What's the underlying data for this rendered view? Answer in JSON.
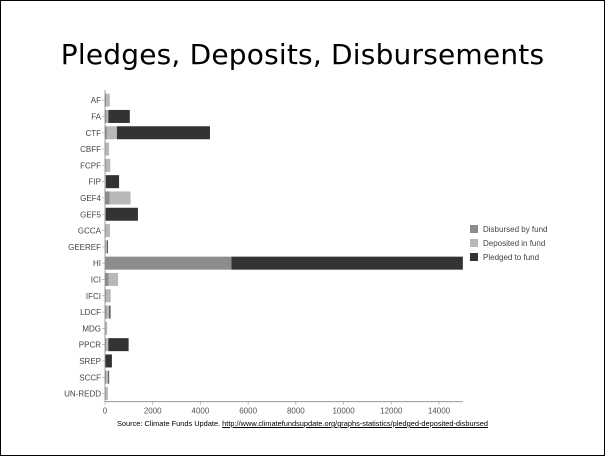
{
  "slide": {
    "title": "Pledges, Deposits, Disbursements",
    "source_prefix": "Source: Climate Funds Update. ",
    "source_link": "http://www.climatefundsupdate.org/graphs-statistics/pledged-deposited-disbursed"
  },
  "chart_data": {
    "type": "bar",
    "orientation": "horizontal",
    "stacked": true,
    "title": "",
    "xlabel": "",
    "ylabel": "",
    "xlim": [
      0,
      15000
    ],
    "xticks": [
      0,
      2000,
      4000,
      6000,
      8000,
      10000,
      12000,
      14000
    ],
    "legend_position": "right",
    "categories": [
      "AF",
      "FA",
      "CTF",
      "CBFF",
      "FCPF",
      "FIP",
      "GEF4",
      "GEF5",
      "GCCA",
      "GEEREF",
      "HI",
      "ICI",
      "IFCI",
      "LDCF",
      "MDG",
      "PPCR",
      "SREP",
      "SCCF",
      "UN-REDD"
    ],
    "series": [
      {
        "name": "Disbursed by fund",
        "color": "#8c8c8c",
        "values": [
          50,
          60,
          80,
          20,
          20,
          10,
          200,
          0,
          30,
          30,
          5300,
          150,
          40,
          60,
          20,
          40,
          0,
          50,
          20
        ]
      },
      {
        "name": "Deposited in fund",
        "color": "#b8b8b8",
        "values": [
          150,
          80,
          420,
          150,
          200,
          30,
          870,
          30,
          180,
          60,
          0,
          400,
          200,
          120,
          70,
          100,
          20,
          90,
          100
        ]
      },
      {
        "name": "Pledged to fund",
        "color": "#333333",
        "values": [
          0,
          900,
          3900,
          0,
          0,
          550,
          0,
          1350,
          0,
          30,
          9700,
          0,
          0,
          50,
          0,
          850,
          270,
          20,
          0
        ]
      }
    ]
  }
}
